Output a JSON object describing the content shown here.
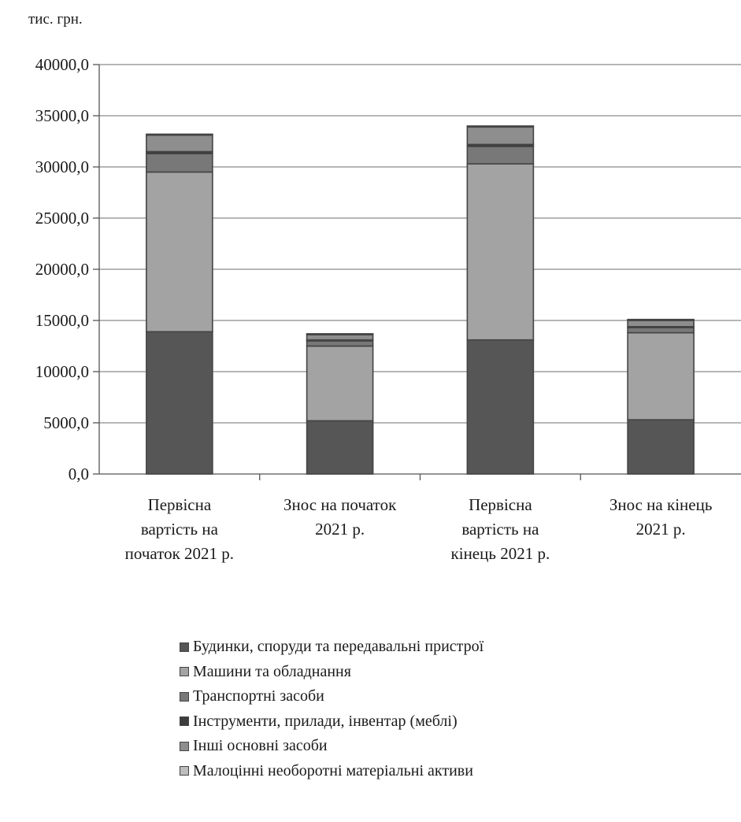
{
  "chart_data": {
    "type": "bar",
    "stacked": true,
    "unit_label": "тис. грн.",
    "title": "",
    "xlabel": "",
    "ylabel": "",
    "ylim": [
      0,
      40000
    ],
    "yticks": [
      0,
      5000,
      10000,
      15000,
      20000,
      25000,
      30000,
      35000,
      40000
    ],
    "ytick_labels": [
      "0,0",
      "5000,0",
      "10000,0",
      "15000,0",
      "20000,0",
      "25000,0",
      "30000,0",
      "35000,0",
      "40000,0"
    ],
    "grid": true,
    "legend_position": "bottom",
    "categories": [
      [
        "Первісна",
        "вартість на",
        "початок 2021 р."
      ],
      [
        "Знос на початок",
        "2021 р."
      ],
      [
        "Первісна",
        "вартість на",
        "кінець 2021 р."
      ],
      [
        "Знос на кінець",
        "2021 р."
      ]
    ],
    "series": [
      {
        "name": "Будинки, споруди та передавальні пристрої",
        "color": "#565656",
        "values": [
          13900,
          5200,
          13100,
          5300
        ]
      },
      {
        "name": "Машини та обладнання",
        "color": "#a3a3a3",
        "values": [
          15600,
          7300,
          17200,
          8500
        ]
      },
      {
        "name": "Транспортні засоби",
        "color": "#787878",
        "values": [
          1800,
          500,
          1700,
          500
        ]
      },
      {
        "name": "Інструменти, прилади, інвентар (меблі)",
        "color": "#3d3d3d",
        "values": [
          200,
          100,
          200,
          100
        ]
      },
      {
        "name": "Інші основні засоби",
        "color": "#8e8e8e",
        "values": [
          1600,
          500,
          1700,
          600
        ]
      },
      {
        "name": "Малоцінні необоротні матеріальні активи",
        "color": "#bdbdbd",
        "values": [
          100,
          100,
          100,
          100
        ]
      }
    ]
  }
}
